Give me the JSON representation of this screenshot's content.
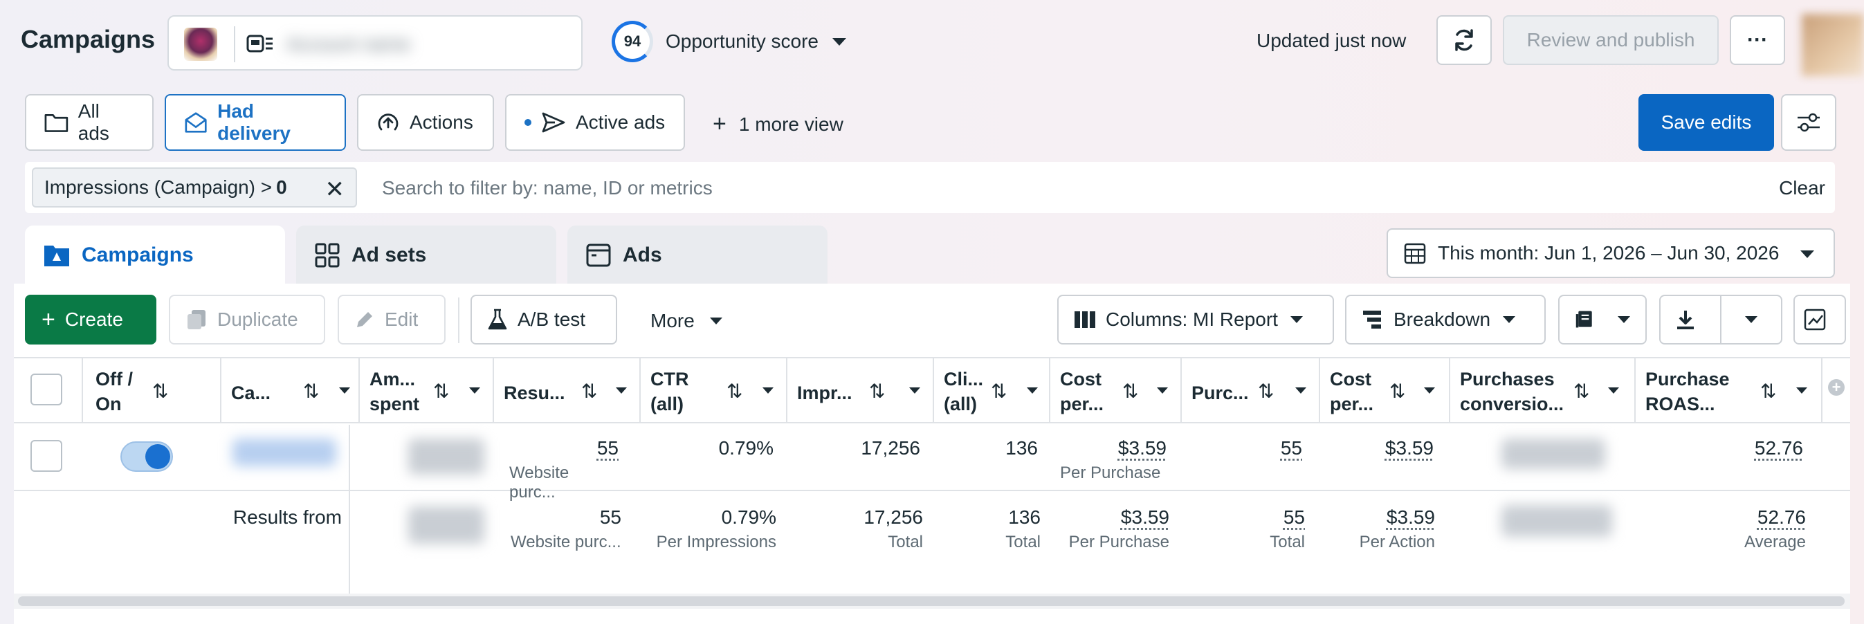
{
  "header": {
    "title": "Campaigns",
    "account_name": "Account name",
    "opportunity_score": "94",
    "opportunity_label": "Opportunity score",
    "updated": "Updated just now",
    "review_publish": "Review and publish",
    "more": "···"
  },
  "views": {
    "all_ads": "All ads",
    "had_delivery": "Had delivery",
    "actions": "Actions",
    "active_ads": "Active ads",
    "more_view": "1 more view",
    "save_edits": "Save edits"
  },
  "filter": {
    "chip_label": "Impressions (Campaign) >",
    "chip_value": "0",
    "placeholder": "Search to filter by: name, ID or metrics",
    "clear": "Clear"
  },
  "levels": {
    "campaigns": "Campaigns",
    "ad_sets": "Ad sets",
    "ads": "Ads",
    "date_range": "This month: Jun 1, 2026 – Jun 30, 2026"
  },
  "toolbar": {
    "create": "Create",
    "duplicate": "Duplicate",
    "edit": "Edit",
    "ab_test": "A/B test",
    "more": "More",
    "columns": "Columns: MI Report",
    "breakdown": "Breakdown"
  },
  "table": {
    "headers": {
      "off_on_1": "Off /",
      "off_on_2": "On",
      "campaign": "Ca...",
      "amount_1": "Am...",
      "amount_2": "spent",
      "results": "Resu...",
      "ctr_1": "CTR",
      "ctr_2": "(all)",
      "impressions": "Impr...",
      "clicks_1": "Cli...",
      "clicks_2": "(all)",
      "cost_per_1": "Cost",
      "cost_per_2": "per...",
      "purchases": "Purc...",
      "cost_per_b_1": "Cost",
      "cost_per_b_2": "per...",
      "purch_conv_1": "Purchases",
      "purch_conv_2": "conversio...",
      "roas_1": "Purchase",
      "roas_2": "ROAS..."
    },
    "row": {
      "results": "55",
      "results_sub": "Website purc...",
      "ctr": "0.79%",
      "impressions": "17,256",
      "clicks": "136",
      "cost_per_result": "$3.59",
      "cost_per_result_sub": "Per Purchase",
      "purchases": "55",
      "cost_per_purchase": "$3.59",
      "roas": "52.76"
    },
    "totals": {
      "label": "Results from",
      "results": "55",
      "results_sub": "Website purc...",
      "ctr": "0.79%",
      "ctr_sub": "Per Impressions",
      "impressions": "17,256",
      "impressions_sub": "Total",
      "clicks": "136",
      "clicks_sub": "Total",
      "cost_per_result": "$3.59",
      "cost_per_result_sub": "Per Purchase",
      "purchases": "55",
      "purchases_sub": "Total",
      "cost_per_purchase": "$3.59",
      "cost_per_purchase_sub": "Per Action",
      "roas": "52.76",
      "roas_sub": "Average"
    }
  },
  "colors": {
    "primary": "#0a66c2",
    "create_green": "#0a7a46",
    "text": "#1c2b33"
  }
}
